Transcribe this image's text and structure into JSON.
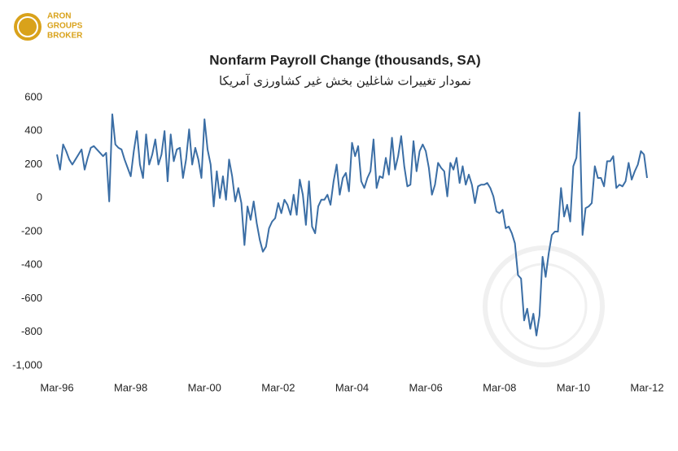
{
  "logo": {
    "lines": [
      "ARON",
      "GROUPS",
      "BROKER"
    ]
  },
  "chart_data": {
    "type": "line",
    "title": "Nonfarm Payroll Change (thousands, SA)",
    "subtitle": "نمودار تغییرات شاغلین بخش غیر کشاورزی آمریکا",
    "color": "#3b6ea5",
    "ylim": [
      -1000,
      600
    ],
    "yticks": [
      600,
      400,
      200,
      0,
      -200,
      -400,
      -600,
      -800,
      {
        "value": -1000,
        "label": "-1,000"
      }
    ],
    "categories": [
      "Mar-96",
      null,
      null,
      null,
      null,
      null,
      null,
      null,
      null,
      null,
      null,
      null,
      null,
      null,
      null,
      null,
      null,
      null,
      null,
      null,
      null,
      null,
      null,
      null,
      "Mar-98",
      null,
      null,
      null,
      null,
      null,
      null,
      null,
      null,
      null,
      null,
      null,
      null,
      null,
      null,
      null,
      null,
      null,
      null,
      null,
      null,
      null,
      null,
      null,
      "Mar-00",
      null,
      null,
      null,
      null,
      null,
      null,
      null,
      null,
      null,
      null,
      null,
      null,
      null,
      null,
      null,
      null,
      null,
      null,
      null,
      null,
      null,
      null,
      null,
      "Mar-02",
      null,
      null,
      null,
      null,
      null,
      null,
      null,
      null,
      null,
      null,
      null,
      null,
      null,
      null,
      null,
      null,
      null,
      null,
      null,
      null,
      null,
      null,
      null,
      "Mar-04",
      null,
      null,
      null,
      null,
      null,
      null,
      null,
      null,
      null,
      null,
      null,
      null,
      null,
      null,
      null,
      null,
      null,
      null,
      null,
      null,
      null,
      null,
      null,
      "Mar-06",
      null,
      null,
      null,
      null,
      null,
      null,
      null,
      null,
      null,
      null,
      null,
      null,
      null,
      null,
      null,
      null,
      null,
      null,
      null,
      null,
      null,
      null,
      null,
      "Mar-08",
      null,
      null,
      null,
      null,
      null,
      null,
      null,
      null,
      null,
      null,
      null,
      null,
      null,
      null,
      null,
      null,
      null,
      null,
      null,
      null,
      null,
      null,
      null,
      "Mar-10",
      null,
      null,
      null,
      null,
      null,
      null,
      null,
      null,
      null,
      null,
      null,
      null,
      null,
      null,
      null,
      null,
      null,
      null,
      null,
      null,
      null,
      null,
      null,
      "Mar-12"
    ],
    "values": [
      260,
      170,
      320,
      280,
      230,
      200,
      230,
      260,
      290,
      170,
      240,
      300,
      310,
      290,
      270,
      250,
      270,
      -20,
      500,
      320,
      300,
      290,
      230,
      180,
      130,
      280,
      400,
      200,
      120,
      380,
      200,
      260,
      350,
      200,
      260,
      400,
      100,
      380,
      220,
      290,
      300,
      120,
      230,
      410,
      200,
      300,
      230,
      120,
      470,
      290,
      200,
      -50,
      160,
      0,
      130,
      -10,
      230,
      130,
      -20,
      60,
      -30,
      -280,
      -50,
      -130,
      -20,
      -150,
      -250,
      -320,
      -290,
      -180,
      -140,
      -120,
      -30,
      -90,
      -10,
      -40,
      -100,
      20,
      -100,
      110,
      20,
      -160,
      100,
      -170,
      -210,
      -50,
      -10,
      -10,
      20,
      -40,
      100,
      200,
      20,
      120,
      150,
      40,
      330,
      250,
      310,
      100,
      60,
      120,
      160,
      350,
      60,
      130,
      120,
      240,
      140,
      360,
      170,
      250,
      370,
      190,
      70,
      80,
      340,
      160,
      280,
      320,
      280,
      180,
      20,
      80,
      210,
      180,
      160,
      10,
      210,
      170,
      240,
      90,
      190,
      80,
      140,
      80,
      -30,
      70,
      80,
      80,
      90,
      60,
      10,
      -80,
      -90,
      -70,
      -180,
      -170,
      -210,
      -270,
      -460,
      -480,
      -730,
      -660,
      -780,
      -690,
      -820,
      -700,
      -350,
      -470,
      -330,
      -220,
      -200,
      -200,
      60,
      -110,
      -40,
      -140,
      190,
      240,
      510,
      -220,
      -60,
      -50,
      -30,
      190,
      120,
      120,
      70,
      220,
      220,
      250,
      60,
      80,
      70,
      100,
      210,
      110,
      160,
      200,
      280,
      260,
      120
    ]
  }
}
